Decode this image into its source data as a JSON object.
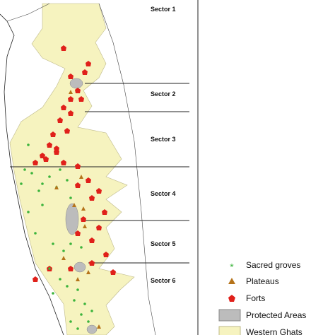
{
  "sectors": [
    "Sector 1",
    "Sector 2",
    "Sector 3",
    "Sector 4",
    "Sector 5",
    "Sector 6"
  ],
  "legend": [
    "Sacred groves",
    "Plateaus",
    "Forts",
    "Protected Areas",
    "Western Ghats"
  ]
}
